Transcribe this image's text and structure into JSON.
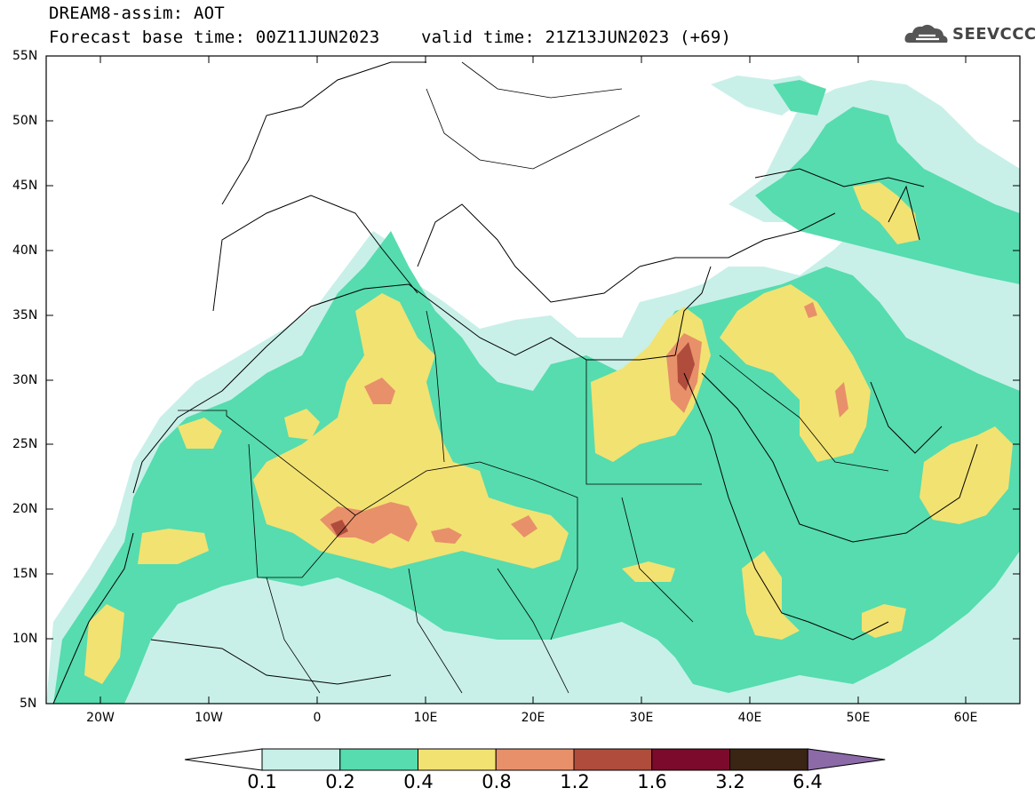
{
  "title": {
    "line1": "DREAM8-assim: AOT",
    "line2": "Forecast base time: 00Z11JUN2023    valid time: 21Z13JUN2023 (+69)"
  },
  "logo": {
    "text": "SEEVCCC",
    "icon": "cloud-icon"
  },
  "map": {
    "lat_labels": [
      "55N",
      "50N",
      "45N",
      "40N",
      "35N",
      "30N",
      "25N",
      "20N",
      "15N",
      "10N",
      "5N"
    ],
    "lon_labels": [
      "20W",
      "10W",
      "0",
      "10E",
      "20E",
      "30E",
      "40E",
      "50E",
      "60E"
    ],
    "extent": {
      "lon_min": -25,
      "lon_max": 65,
      "lat_min": 5,
      "lat_max": 55
    }
  },
  "colorbar": {
    "labels": [
      "0.1",
      "0.2",
      "0.4",
      "0.8",
      "1.2",
      "1.6",
      "3.2",
      "6.4"
    ],
    "colors": [
      "#ffffff",
      "#c8f0e8",
      "#56dcae",
      "#f2e272",
      "#e8906a",
      "#b04c3c",
      "#7c0a2c",
      "#3a2414",
      "#8c6aa8"
    ]
  },
  "colors": {
    "level1": "#c8f0e8",
    "level2": "#56dcae",
    "level3": "#f2e272",
    "level4": "#e8906a",
    "level5": "#b04c3c"
  }
}
